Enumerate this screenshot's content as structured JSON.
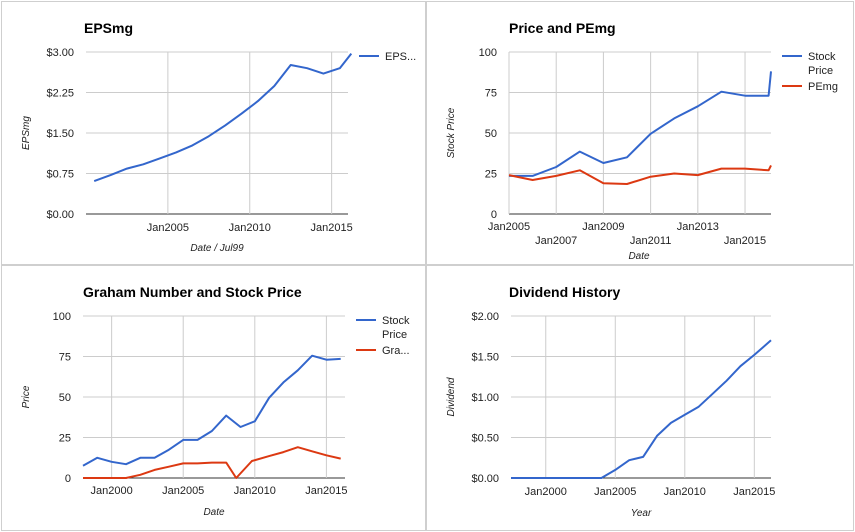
{
  "chart_data": [
    {
      "type": "line",
      "title": "EPSmg",
      "xlabel": "Date / Jul99",
      "ylabel": "EPSmg",
      "ylim": [
        0,
        3.0
      ],
      "y_ticks": [
        "$0.00",
        "$0.75",
        "$1.50",
        "$2.25",
        "$3.00"
      ],
      "y_tick_values": [
        0,
        0.75,
        1.5,
        2.25,
        3.0
      ],
      "xlim": [
        2000,
        2016
      ],
      "x_ticks": [
        "Jan2005",
        "Jan2010",
        "Jan2015"
      ],
      "x_tick_values": [
        2005,
        2010,
        2015
      ],
      "grid": true,
      "legend": "right",
      "series": [
        {
          "name": "EPS...",
          "color": "#3366cc",
          "x": [
            2000.5,
            2001.5,
            2002.5,
            2003.5,
            2004.5,
            2005.5,
            2006.5,
            2007.5,
            2008.5,
            2009.5,
            2010.5,
            2011.5,
            2012.5,
            2013.5,
            2014.5,
            2015.5,
            2016.2
          ],
          "values": [
            0.61,
            0.72,
            0.84,
            0.92,
            1.03,
            1.14,
            1.27,
            1.44,
            1.64,
            1.86,
            2.09,
            2.37,
            2.76,
            2.7,
            2.6,
            2.7,
            2.97
          ]
        }
      ]
    },
    {
      "type": "line",
      "title": "Price and PEmg",
      "xlabel": "Date",
      "ylabel": "Stock Price",
      "ylim": [
        0,
        100
      ],
      "y_ticks": [
        "0",
        "25",
        "50",
        "75",
        "100"
      ],
      "y_tick_values": [
        0,
        25,
        50,
        75,
        100
      ],
      "xlim": [
        2005,
        2016.1
      ],
      "x_ticks": [
        "Jan2005",
        "Jan2007",
        "Jan2009",
        "Jan2011",
        "Jan2013",
        "Jan2015"
      ],
      "x_tick_values": [
        2005,
        2007,
        2009,
        2011,
        2013,
        2015
      ],
      "grid": true,
      "legend": "right",
      "series": [
        {
          "name": "Stock Price",
          "color": "#3366cc",
          "x": [
            2005,
            2006,
            2007,
            2008,
            2009,
            2010,
            2011,
            2012,
            2013,
            2014,
            2015,
            2016,
            2016.1
          ],
          "values": [
            23.5,
            23.5,
            29,
            38.5,
            31.5,
            35,
            49.5,
            59,
            66.5,
            75.5,
            73,
            73,
            88
          ]
        },
        {
          "name": "PEmg",
          "color": "#dc3912",
          "x": [
            2005,
            2006,
            2007,
            2008,
            2009,
            2010,
            2011,
            2012,
            2013,
            2014,
            2015,
            2016,
            2016.1
          ],
          "values": [
            24,
            21,
            23.5,
            27,
            19,
            18.5,
            23,
            25,
            24,
            28,
            28,
            27,
            30
          ]
        }
      ]
    },
    {
      "type": "line",
      "title": "Graham Number and Stock Price",
      "xlabel": "Date",
      "ylabel": "Price",
      "ylim": [
        0,
        100
      ],
      "y_ticks": [
        "0",
        "25",
        "50",
        "75",
        "100"
      ],
      "y_tick_values": [
        0,
        25,
        50,
        75,
        100
      ],
      "xlim": [
        1998,
        2016.3
      ],
      "x_ticks": [
        "Jan2000",
        "Jan2005",
        "Jan2010",
        "Jan2015"
      ],
      "x_tick_values": [
        2000,
        2005,
        2010,
        2015
      ],
      "grid": true,
      "legend": "right",
      "series": [
        {
          "name": "Stock Price",
          "color": "#3366cc",
          "x": [
            1998,
            1999,
            2000,
            2001,
            2002,
            2003,
            2004,
            2005,
            2006,
            2007,
            2008,
            2009,
            2010,
            2011,
            2012,
            2013,
            2014,
            2015,
            2016
          ],
          "values": [
            7.5,
            12.5,
            10,
            8.5,
            12.5,
            12.5,
            17.5,
            23.5,
            23.5,
            29,
            38.5,
            31.5,
            35,
            49.5,
            59,
            66.5,
            75.5,
            73,
            73.5
          ]
        },
        {
          "name": "Gra...",
          "color": "#dc3912",
          "x": [
            1998,
            1999,
            2000,
            2001,
            2002,
            2003,
            2004,
            2005,
            2006,
            2007,
            2008,
            2008.7,
            2009.8,
            2011,
            2012,
            2013,
            2014,
            2015,
            2016
          ],
          "values": [
            0,
            0,
            0,
            0,
            2,
            5,
            7,
            9,
            9,
            9.5,
            9.5,
            0,
            10.5,
            13.5,
            16,
            19,
            16.5,
            14,
            12
          ]
        }
      ]
    },
    {
      "type": "line",
      "title": "Dividend History",
      "xlabel": "Year",
      "ylabel": "Dividend",
      "ylim": [
        0,
        2.0
      ],
      "y_ticks": [
        "$0.00",
        "$0.50",
        "$1.00",
        "$1.50",
        "$2.00"
      ],
      "y_tick_values": [
        0,
        0.5,
        1.0,
        1.5,
        2.0
      ],
      "xlim": [
        1997.5,
        2016.2
      ],
      "x_ticks": [
        "Jan2000",
        "Jan2005",
        "Jan2010",
        "Jan2015"
      ],
      "x_tick_values": [
        2000,
        2005,
        2010,
        2015
      ],
      "grid": true,
      "legend": "none",
      "series": [
        {
          "name": "",
          "color": "#3366cc",
          "x": [
            1997.5,
            1999,
            2000,
            2001,
            2002,
            2003,
            2004,
            2005,
            2006,
            2007,
            2008,
            2009,
            2010,
            2011,
            2012,
            2013,
            2014,
            2015,
            2016.2
          ],
          "values": [
            0,
            0,
            0,
            0,
            0,
            0,
            0,
            0.1,
            0.22,
            0.26,
            0.52,
            0.68,
            0.78,
            0.88,
            1.04,
            1.2,
            1.38,
            1.52,
            1.7
          ]
        }
      ]
    }
  ]
}
